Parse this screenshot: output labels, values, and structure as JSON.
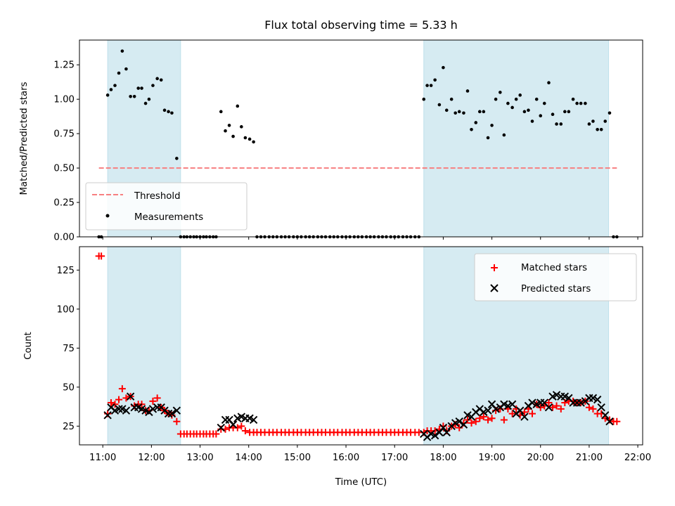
{
  "figure": {
    "title": "Flux total observing time = 5.33 h",
    "colors": {
      "shade": "#add8e6",
      "threshold": "#f77f80",
      "measurement": "#000000",
      "matched": "#ff0000",
      "predicted": "#000000"
    }
  },
  "chart_data": [
    {
      "type": "scatter",
      "panel": "top",
      "title": "Flux total observing time = 5.33 h",
      "xlabel": "",
      "ylabel": "Matched/Predicted stars",
      "x_unit": "hours UTC (decimal)",
      "xlim": [
        10.52,
        22.1
      ],
      "ylim": [
        0,
        1.43
      ],
      "yticks": [
        "0.00",
        "0.25",
        "0.50",
        "0.75",
        "1.00",
        "1.25"
      ],
      "shaded_intervals": [
        [
          11.1,
          12.6
        ],
        [
          17.6,
          21.4
        ]
      ],
      "legend": {
        "position": "lower-left",
        "entries": [
          "Threshold",
          "Measurements"
        ]
      },
      "series": [
        {
          "name": "Threshold",
          "style": "dashed-line",
          "x": [
            10.92,
            21.57
          ],
          "y": [
            0.5,
            0.5
          ]
        },
        {
          "name": "Measurements",
          "style": "dots",
          "x": [
            10.92,
            10.97,
            11.1,
            11.17,
            11.25,
            11.33,
            11.4,
            11.48,
            11.57,
            11.65,
            11.73,
            11.8,
            11.88,
            11.95,
            12.03,
            12.12,
            12.2,
            12.27,
            12.35,
            12.42,
            12.52,
            12.6,
            12.67,
            12.73,
            12.8,
            12.87,
            12.93,
            13.0,
            13.07,
            13.13,
            13.2,
            13.27,
            13.33,
            13.43,
            13.52,
            13.6,
            13.68,
            13.77,
            13.85,
            13.93,
            14.02,
            14.1,
            14.17,
            14.25,
            14.33,
            14.42,
            14.5,
            14.58,
            14.67,
            14.75,
            14.83,
            14.92,
            15.0,
            15.08,
            15.17,
            15.25,
            15.33,
            15.42,
            15.5,
            15.58,
            15.67,
            15.75,
            15.83,
            15.92,
            16.0,
            16.08,
            16.17,
            16.25,
            16.33,
            16.42,
            16.5,
            16.58,
            16.67,
            16.75,
            16.83,
            16.92,
            17.0,
            17.08,
            17.17,
            17.25,
            17.33,
            17.42,
            17.5,
            17.6,
            17.67,
            17.75,
            17.83,
            17.92,
            18.0,
            18.07,
            18.17,
            18.25,
            18.33,
            18.42,
            18.5,
            18.58,
            18.67,
            18.75,
            18.83,
            18.92,
            19.0,
            19.08,
            19.17,
            19.25,
            19.33,
            19.42,
            19.5,
            19.58,
            19.67,
            19.75,
            19.83,
            19.92,
            20.0,
            20.08,
            20.17,
            20.25,
            20.33,
            20.42,
            20.5,
            20.58,
            20.67,
            20.75,
            20.83,
            20.92,
            21.0,
            21.08,
            21.17,
            21.25,
            21.33,
            21.42,
            21.5,
            21.57
          ],
          "y": [
            0.0,
            0.0,
            1.03,
            1.07,
            1.1,
            1.19,
            1.35,
            1.22,
            1.02,
            1.02,
            1.08,
            1.08,
            0.97,
            1.0,
            1.1,
            1.15,
            1.14,
            0.92,
            0.91,
            0.9,
            0.57,
            0.0,
            0.0,
            0.0,
            0.0,
            0.0,
            0.0,
            0.0,
            0.0,
            0.0,
            0.0,
            0.0,
            0.0,
            0.91,
            0.77,
            0.81,
            0.73,
            0.95,
            0.8,
            0.72,
            0.71,
            0.69,
            0.0,
            0.0,
            0.0,
            0.0,
            0.0,
            0.0,
            0.0,
            0.0,
            0.0,
            0.0,
            0.0,
            0.0,
            0.0,
            0.0,
            0.0,
            0.0,
            0.0,
            0.0,
            0.0,
            0.0,
            0.0,
            0.0,
            0.0,
            0.0,
            0.0,
            0.0,
            0.0,
            0.0,
            0.0,
            0.0,
            0.0,
            0.0,
            0.0,
            0.0,
            0.0,
            0.0,
            0.0,
            0.0,
            0.0,
            0.0,
            0.0,
            1.0,
            1.1,
            1.1,
            1.14,
            0.96,
            1.23,
            0.92,
            1.0,
            0.9,
            0.91,
            0.9,
            1.06,
            0.78,
            0.83,
            0.91,
            0.91,
            0.72,
            0.81,
            1.0,
            1.05,
            0.74,
            0.97,
            0.94,
            1.0,
            1.03,
            0.91,
            0.92,
            0.84,
            1.0,
            0.88,
            0.97,
            1.12,
            0.89,
            0.82,
            0.82,
            0.91,
            0.91,
            1.0,
            0.97,
            0.97,
            0.97,
            0.82,
            0.84,
            0.78,
            0.78,
            0.84,
            0.9,
            0.0,
            0.0
          ]
        }
      ]
    },
    {
      "type": "scatter",
      "panel": "bottom",
      "title": "",
      "xlabel": "Time (UTC)",
      "ylabel": "Count",
      "x_unit": "hours UTC (decimal)",
      "xlim": [
        10.52,
        22.1
      ],
      "ylim": [
        13,
        140
      ],
      "yticks": [
        "25",
        "50",
        "75",
        "100",
        "125"
      ],
      "xticks": [
        "11:00",
        "12:00",
        "13:00",
        "14:00",
        "15:00",
        "16:00",
        "17:00",
        "18:00",
        "19:00",
        "20:00",
        "21:00",
        "22:00"
      ],
      "shaded_intervals": [
        [
          11.1,
          12.6
        ],
        [
          17.6,
          21.4
        ]
      ],
      "legend": {
        "position": "top-right",
        "entries": [
          "Matched stars",
          "Predicted stars"
        ]
      },
      "series": [
        {
          "name": "Matched stars",
          "marker": "plus",
          "x": [
            10.92,
            10.97,
            11.1,
            11.17,
            11.25,
            11.33,
            11.4,
            11.48,
            11.57,
            11.65,
            11.73,
            11.8,
            11.88,
            11.95,
            12.03,
            12.12,
            12.2,
            12.27,
            12.35,
            12.42,
            12.52,
            12.6,
            12.67,
            12.73,
            12.8,
            12.87,
            12.93,
            13.0,
            13.07,
            13.13,
            13.2,
            13.27,
            13.33,
            13.43,
            13.52,
            13.6,
            13.68,
            13.77,
            13.85,
            13.93,
            14.02,
            14.1,
            14.17,
            14.25,
            14.33,
            14.42,
            14.5,
            14.58,
            14.67,
            14.75,
            14.83,
            14.92,
            15.0,
            15.08,
            15.17,
            15.25,
            15.33,
            15.42,
            15.5,
            15.58,
            15.67,
            15.75,
            15.83,
            15.92,
            16.0,
            16.08,
            16.17,
            16.25,
            16.33,
            16.42,
            16.5,
            16.58,
            16.67,
            16.75,
            16.83,
            16.92,
            17.0,
            17.08,
            17.17,
            17.25,
            17.33,
            17.42,
            17.5,
            17.6,
            17.67,
            17.75,
            17.83,
            17.92,
            18.0,
            18.07,
            18.17,
            18.25,
            18.33,
            18.42,
            18.5,
            18.58,
            18.67,
            18.75,
            18.83,
            18.92,
            19.0,
            19.08,
            19.17,
            19.25,
            19.33,
            19.42,
            19.5,
            19.58,
            19.67,
            19.75,
            19.83,
            19.92,
            20.0,
            20.08,
            20.17,
            20.25,
            20.33,
            20.42,
            20.5,
            20.58,
            20.67,
            20.75,
            20.83,
            20.92,
            21.0,
            21.08,
            21.17,
            21.25,
            21.33,
            21.42,
            21.5,
            21.57
          ],
          "y": [
            134,
            134,
            33,
            40,
            39,
            42,
            49,
            43,
            44,
            38,
            39,
            39,
            35,
            35,
            41,
            43,
            37,
            35,
            33,
            32,
            28,
            20,
            20,
            20,
            20,
            20,
            20,
            20,
            20,
            20,
            20,
            20,
            20,
            23,
            23,
            24,
            24,
            24,
            25,
            22,
            21,
            21,
            21,
            21,
            21,
            21,
            21,
            21,
            21,
            21,
            21,
            21,
            21,
            21,
            21,
            21,
            21,
            21,
            21,
            21,
            21,
            21,
            21,
            21,
            21,
            21,
            21,
            21,
            21,
            21,
            21,
            21,
            21,
            21,
            21,
            21,
            21,
            21,
            21,
            21,
            21,
            21,
            21,
            21,
            22,
            22,
            22,
            23,
            25,
            22,
            25,
            26,
            24,
            27,
            29,
            27,
            28,
            30,
            31,
            29,
            30,
            35,
            36,
            29,
            36,
            33,
            36,
            32,
            34,
            36,
            33,
            39,
            37,
            38,
            40,
            37,
            38,
            36,
            40,
            41,
            41,
            40,
            40,
            41,
            37,
            36,
            33,
            33,
            30,
            29,
            28,
            28
          ]
        },
        {
          "name": "Predicted stars",
          "marker": "x",
          "x": [
            11.1,
            11.17,
            11.25,
            11.33,
            11.4,
            11.48,
            11.57,
            11.65,
            11.73,
            11.8,
            11.88,
            11.95,
            12.03,
            12.12,
            12.2,
            12.27,
            12.35,
            12.42,
            12.52,
            13.43,
            13.52,
            13.6,
            13.68,
            13.77,
            13.85,
            13.93,
            14.02,
            14.1,
            17.6,
            17.67,
            17.75,
            17.83,
            17.92,
            18.0,
            18.07,
            18.17,
            18.25,
            18.33,
            18.42,
            18.5,
            18.58,
            18.67,
            18.75,
            18.83,
            18.92,
            19.0,
            19.08,
            19.17,
            19.25,
            19.33,
            19.42,
            19.5,
            19.58,
            19.67,
            19.75,
            19.83,
            19.92,
            20.0,
            20.08,
            20.17,
            20.25,
            20.33,
            20.42,
            20.5,
            20.58,
            20.67,
            20.75,
            20.83,
            20.92,
            21.0,
            21.08,
            21.17,
            21.25,
            21.33,
            21.42
          ],
          "y": [
            32,
            37,
            35,
            36,
            36,
            35,
            44,
            37,
            37,
            36,
            35,
            34,
            36,
            37,
            37,
            35,
            33,
            33,
            35,
            24,
            29,
            29,
            26,
            30,
            31,
            30,
            30,
            29,
            20,
            18,
            20,
            19,
            21,
            24,
            21,
            25,
            27,
            28,
            26,
            32,
            31,
            34,
            36,
            34,
            35,
            39,
            36,
            37,
            39,
            38,
            39,
            33,
            35,
            31,
            38,
            40,
            39,
            40,
            40,
            37,
            44,
            45,
            44,
            44,
            43,
            40,
            40,
            40,
            41,
            43,
            43,
            42,
            37,
            32,
            28
          ]
        }
      ]
    }
  ]
}
